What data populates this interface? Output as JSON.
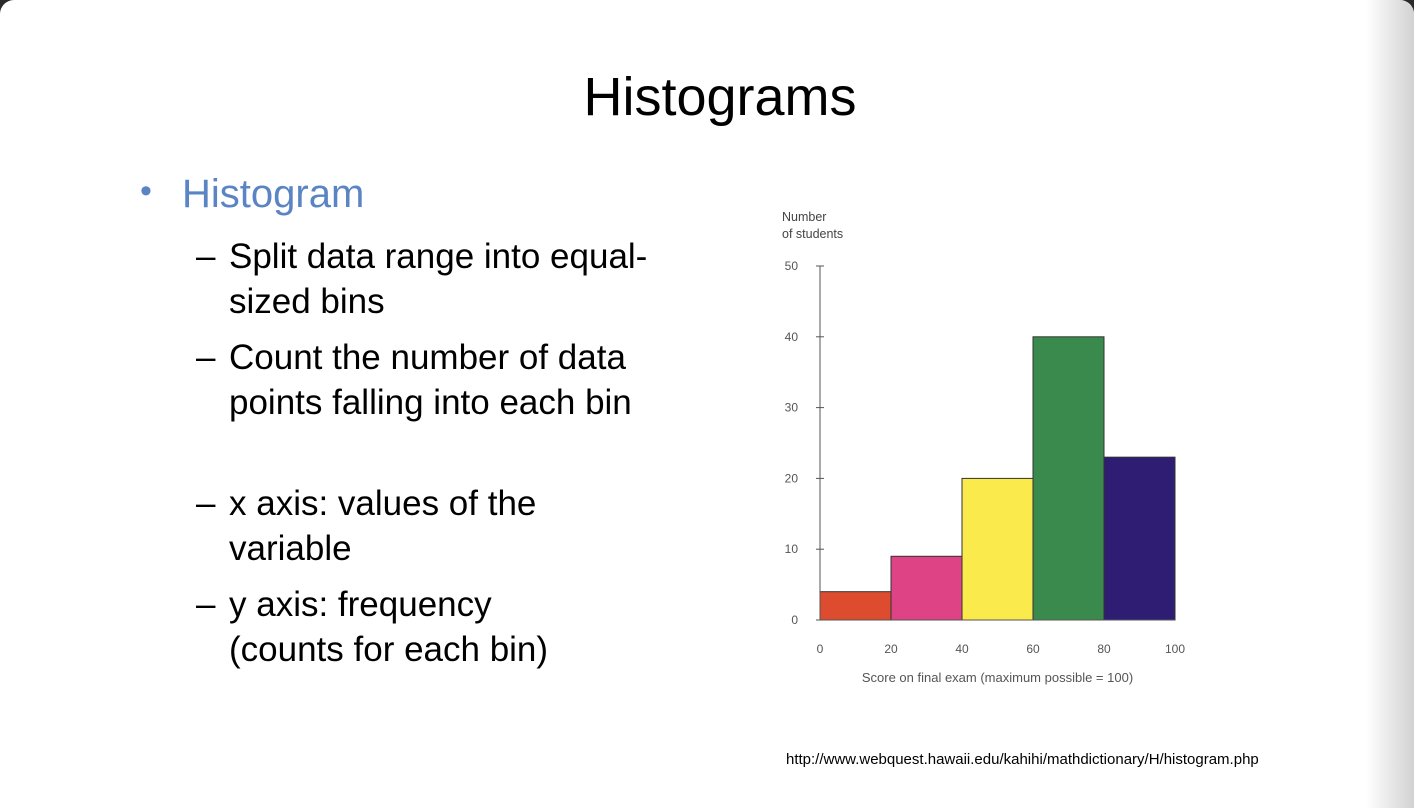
{
  "slide": {
    "title": "Histograms",
    "bullet_symbol": "•",
    "bullet": "Histogram",
    "sub_dash": "–",
    "subbullets": [
      "Split data range into equal-sized bins",
      "Count the number of data points falling into each bin",
      "x axis: values of the variable",
      "y axis: frequency (counts for each bin)"
    ],
    "source": "http://www.webquest.hawaii.edu/kahihi/mathdictionary/H/histogram.php"
  },
  "chart_data": {
    "type": "bar",
    "bins": [
      [
        0,
        20
      ],
      [
        20,
        40
      ],
      [
        40,
        60
      ],
      [
        60,
        80
      ],
      [
        80,
        100
      ]
    ],
    "values": [
      4,
      9,
      20,
      40,
      23
    ],
    "colors": [
      "#dd4c2e",
      "#de4485",
      "#fbea4c",
      "#3a8a4e",
      "#2e1d72"
    ],
    "ylabel_lines": [
      "Number",
      "of students"
    ],
    "xlabel": "Score on final exam (maximum possible = 100)",
    "xlim": [
      0,
      100
    ],
    "ylim": [
      0,
      50
    ],
    "xticks": [
      0,
      20,
      40,
      60,
      80,
      100
    ],
    "yticks": [
      0,
      10,
      20,
      30,
      40,
      50
    ],
    "grid": false
  }
}
